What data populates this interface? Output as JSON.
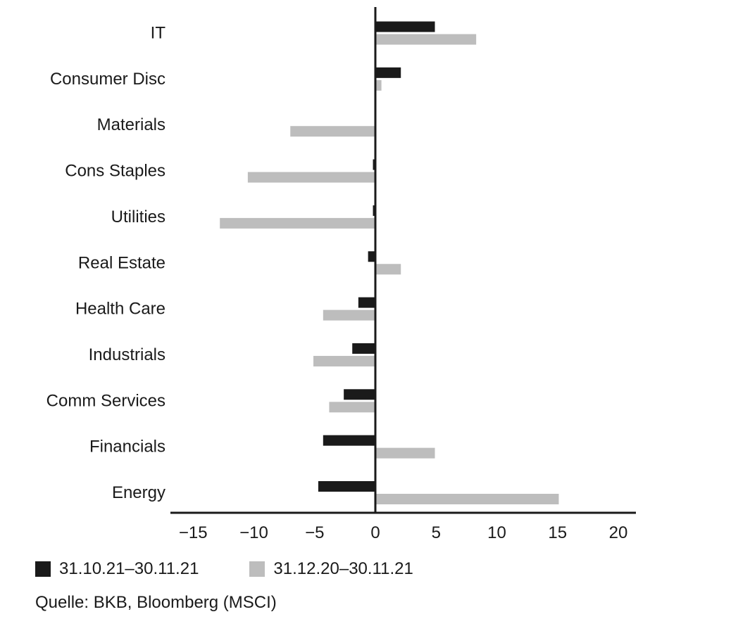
{
  "chart_data": {
    "type": "bar",
    "orientation": "horizontal",
    "categories": [
      "IT",
      "Consumer Disc",
      "Materials",
      "Cons Staples",
      "Utilities",
      "Real Estate",
      "Health Care",
      "Industrials",
      "Comm Services",
      "Financials",
      "Energy"
    ],
    "series": [
      {
        "name": "31.10.21–30.11.21",
        "color": "#1a1a1a",
        "values": [
          4.9,
          2.1,
          0.0,
          -0.2,
          -0.2,
          -0.6,
          -1.4,
          -1.9,
          -2.6,
          -4.3,
          -4.7
        ]
      },
      {
        "name": "31.12.20–30.11.21",
        "color": "#bdbdbd",
        "values": [
          8.3,
          0.5,
          -7.0,
          -10.5,
          -12.8,
          2.1,
          -4.3,
          -5.1,
          -3.8,
          4.9,
          15.1
        ]
      }
    ],
    "x_ticks": [
      "−15",
      "−10",
      "−5",
      "0",
      "5",
      "10",
      "15",
      "20"
    ],
    "x_tick_values": [
      -15,
      -10,
      -5,
      0,
      5,
      10,
      15,
      20
    ],
    "xlim": [
      -17,
      21.5
    ],
    "grid": false,
    "legend_position": "bottom-left"
  },
  "legend": {
    "series1_label": "31.10.21–30.11.21",
    "series2_label": "31.12.20–30.11.21",
    "series1_color": "#1a1a1a",
    "series2_color": "#bdbdbd"
  },
  "source_text": "Quelle: BKB, Bloomberg (MSCI)"
}
